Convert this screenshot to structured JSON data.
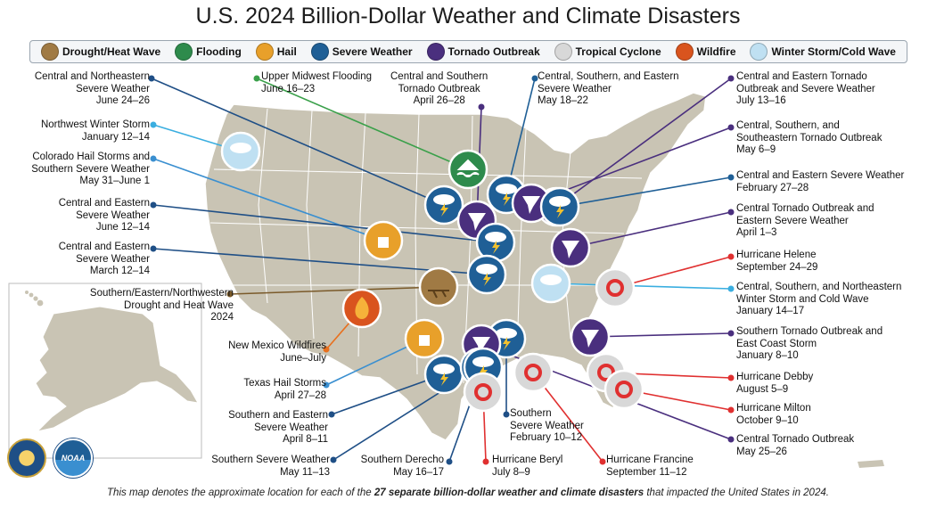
{
  "title": "U.S. 2024 Billion-Dollar Weather and Climate Disasters",
  "legend": [
    {
      "label": "Drought/Heat Wave",
      "icon": "drought-icon",
      "color": "#a07a44"
    },
    {
      "label": "Flooding",
      "icon": "flooding-icon",
      "color": "#2e8b4c"
    },
    {
      "label": "Hail",
      "icon": "hail-icon",
      "color": "#e8a02a"
    },
    {
      "label": "Severe Weather",
      "icon": "severe-weather-icon",
      "color": "#1f5f96"
    },
    {
      "label": "Tornado Outbreak",
      "icon": "tornado-icon",
      "color": "#4a2f7e"
    },
    {
      "label": "Tropical Cyclone",
      "icon": "tropical-cyclone-icon",
      "color": "#d8d8d8"
    },
    {
      "label": "Wildfire",
      "icon": "wildfire-icon",
      "color": "#d9541e"
    },
    {
      "label": "Winter Storm/Cold Wave",
      "icon": "winter-storm-icon",
      "color": "#bfe0f2"
    }
  ],
  "events": [
    {
      "name": "Central and Northeastern\nSevere Weather",
      "date": "June 24–26",
      "type": "severe-weather",
      "line_color": "#1f4f86"
    },
    {
      "name": "Upper Midwest Flooding",
      "date": "June 16–23",
      "type": "flooding",
      "line_color": "#3aa04a"
    },
    {
      "name": "Central and Southern\nTornado Outbreak",
      "date": "April 26–28",
      "type": "tornado",
      "line_color": "#4a2f7e"
    },
    {
      "name": "Central, Southern, and Eastern\nSevere Weather",
      "date": "May 18–22",
      "type": "severe-weather",
      "line_color": "#1f5f96"
    },
    {
      "name": "Central and Eastern Tornado\nOutbreak and Severe Weather",
      "date": "July 13–16",
      "type": "tornado",
      "line_color": "#4a2f7e"
    },
    {
      "name": "Northwest Winter Storm",
      "date": "January 12–14",
      "type": "winter-storm",
      "line_color": "#3aaee0"
    },
    {
      "name": "Central, Southern, and\nSoutheastern Tornado Outbreak",
      "date": "May 6–9",
      "type": "tornado",
      "line_color": "#4a2f7e"
    },
    {
      "name": "Colorado Hail Storms and\nSouthern Severe Weather",
      "date": "May 31–June 1",
      "type": "hail",
      "line_color": "#3a8fd0"
    },
    {
      "name": "Central and Eastern Severe Weather",
      "date": "February 27–28",
      "type": "severe-weather",
      "line_color": "#1f5f96"
    },
    {
      "name": "Central and Eastern\nSevere Weather",
      "date": "June 12–14",
      "type": "severe-weather",
      "line_color": "#1f4f86"
    },
    {
      "name": "Central Tornado Outbreak and\nEastern Severe Weather",
      "date": "April 1–3",
      "type": "tornado",
      "line_color": "#4a2f7e"
    },
    {
      "name": "Central and Eastern\nSevere Weather",
      "date": "March 12–14",
      "type": "severe-weather",
      "line_color": "#1f4f86"
    },
    {
      "name": "Hurricane Helene",
      "date": "September 24–29",
      "type": "tropical-cyclone",
      "line_color": "#e03030"
    },
    {
      "name": "Southern/Eastern/Northwestern\nDrought and Heat Wave",
      "date": "2024",
      "type": "drought",
      "line_color": "#7a5a2a"
    },
    {
      "name": "Central, Southern, and Northeastern\nWinter Storm and Cold Wave",
      "date": "January 14–17",
      "type": "winter-storm",
      "line_color": "#3aaee0"
    },
    {
      "name": "Southern Tornado Outbreak and\nEast Coast Storm",
      "date": "January 8–10",
      "type": "tornado",
      "line_color": "#4a2f7e"
    },
    {
      "name": "New Mexico Wildfires",
      "date": "June–July",
      "type": "wildfire",
      "line_color": "#e8701e"
    },
    {
      "name": "Hurricane Debby",
      "date": "August 5–9",
      "type": "tropical-cyclone",
      "line_color": "#e03030"
    },
    {
      "name": "Texas Hail Storms",
      "date": "April 27–28",
      "type": "hail",
      "line_color": "#3a8fd0"
    },
    {
      "name": "Hurricane Milton",
      "date": "October 9–10",
      "type": "tropical-cyclone",
      "line_color": "#e03030"
    },
    {
      "name": "Southern and Eastern\nSevere Weather",
      "date": "April 8–11",
      "type": "severe-weather",
      "line_color": "#1f4f86"
    },
    {
      "name": "Southern\nSevere Weather",
      "date": "February 10–12",
      "type": "severe-weather",
      "line_color": "#1f4f86"
    },
    {
      "name": "Central Tornado Outbreak",
      "date": "May 25–26",
      "type": "tornado",
      "line_color": "#4a2f7e"
    },
    {
      "name": "Southern Severe Weather",
      "date": "May 11–13",
      "type": "severe-weather",
      "line_color": "#1f4f86"
    },
    {
      "name": "Southern Derecho",
      "date": "May 16–17",
      "type": "severe-weather",
      "line_color": "#1f4f86"
    },
    {
      "name": "Hurricane Beryl",
      "date": "July 8–9",
      "type": "tropical-cyclone",
      "line_color": "#e03030"
    },
    {
      "name": "Hurricane Francine",
      "date": "September 11–12",
      "type": "tropical-cyclone",
      "line_color": "#e03030"
    }
  ],
  "footnote": {
    "prefix": "This map denotes the approximate location for each of the ",
    "emphasis": "27 separate billion-dollar weather and climate disasters",
    "suffix": " that impacted the United States in 2024."
  },
  "logos": [
    {
      "text": "",
      "icon": "doc-seal-icon"
    },
    {
      "text": "NOAA",
      "icon": "noaa-logo-icon"
    }
  ],
  "colors": {
    "land": "#c9c4b4",
    "land_border": "#ffffff",
    "water": "#ffffff"
  }
}
